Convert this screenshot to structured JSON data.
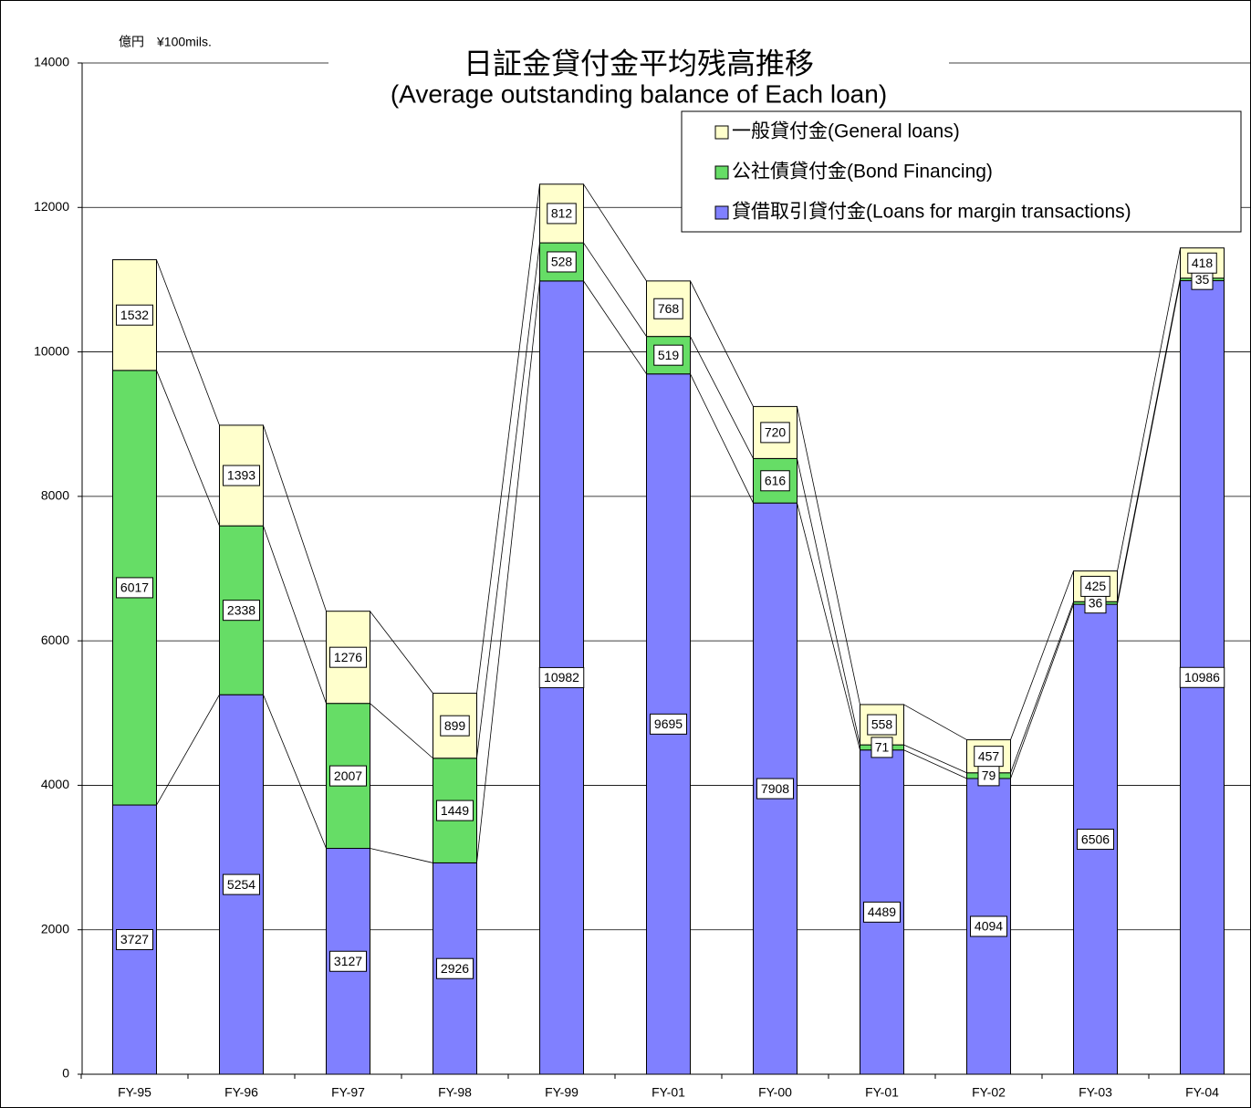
{
  "chart_data": {
    "type": "stacked_bar",
    "title": "日証金貸付金平均残高推移",
    "subtitle": "(Average outstanding balance of  Each loan)",
    "unit_label": "億円　¥100mils.",
    "categories": [
      "FY-95",
      "FY-96",
      "FY-97",
      "FY-98",
      "FY-99",
      "FY-01",
      "FY-00",
      "FY-01",
      "FY-02",
      "FY-03",
      "FY-04"
    ],
    "series": [
      {
        "name": "貸借取引貸付金(Loans for margin transactions)",
        "color": "#8080ff",
        "values": [
          3727,
          5254,
          3127,
          2926,
          10982,
          9695,
          7908,
          4489,
          4094,
          6506,
          10986
        ]
      },
      {
        "name": "公社債貸付金(Bond Financing)",
        "color": "#66dd66",
        "values": [
          6017,
          2338,
          2007,
          1449,
          528,
          519,
          616,
          71,
          79,
          36,
          35
        ]
      },
      {
        "name": "一般貸付金(General loans)",
        "color": "#ffffcc",
        "values": [
          1532,
          1393,
          1276,
          899,
          812,
          768,
          720,
          558,
          457,
          425,
          418
        ]
      }
    ],
    "ylim": [
      0,
      14000
    ],
    "yticks": [
      0,
      2000,
      4000,
      6000,
      8000,
      10000,
      12000,
      14000
    ],
    "grid": true,
    "legend": "top-right"
  }
}
